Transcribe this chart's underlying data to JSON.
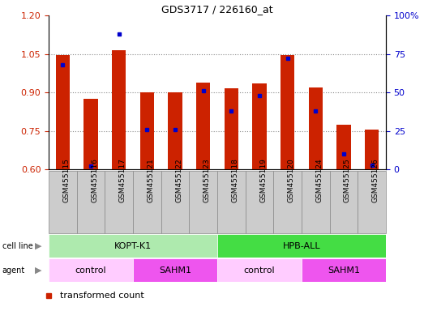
{
  "title": "GDS3717 / 226160_at",
  "samples": [
    "GSM455115",
    "GSM455116",
    "GSM455117",
    "GSM455121",
    "GSM455122",
    "GSM455123",
    "GSM455118",
    "GSM455119",
    "GSM455120",
    "GSM455124",
    "GSM455125",
    "GSM455126"
  ],
  "red_values": [
    1.045,
    0.875,
    1.065,
    0.9,
    0.9,
    0.94,
    0.915,
    0.935,
    1.045,
    0.92,
    0.775,
    0.755
  ],
  "blue_percentiles": [
    68,
    2,
    88,
    26,
    26,
    51,
    38,
    48,
    72,
    38,
    10,
    3
  ],
  "y_min": 0.6,
  "y_max": 1.2,
  "y_ticks": [
    0.6,
    0.75,
    0.9,
    1.05,
    1.2
  ],
  "right_y_ticks": [
    0,
    25,
    50,
    75,
    100
  ],
  "cell_line_groups": [
    {
      "label": "KOPT-K1",
      "start": 0,
      "end": 6,
      "color": "#aeeaae"
    },
    {
      "label": "HPB-ALL",
      "start": 6,
      "end": 12,
      "color": "#44dd44"
    }
  ],
  "agent_groups": [
    {
      "label": "control",
      "start": 0,
      "end": 3,
      "color": "#ffccff"
    },
    {
      "label": "SAHM1",
      "start": 3,
      "end": 6,
      "color": "#ee55ee"
    },
    {
      "label": "control",
      "start": 6,
      "end": 9,
      "color": "#ffccff"
    },
    {
      "label": "SAHM1",
      "start": 9,
      "end": 12,
      "color": "#ee55ee"
    }
  ],
  "bar_color": "#cc2200",
  "dot_color": "#0000cc",
  "background_color": "#ffffff",
  "plot_bg_color": "#ffffff",
  "grid_color": "#888888",
  "bar_width": 0.5,
  "tick_label_color_left": "#cc2200",
  "tick_label_color_right": "#0000cc",
  "xlabel_bg_color": "#cccccc",
  "xlabel_edge_color": "#888888"
}
